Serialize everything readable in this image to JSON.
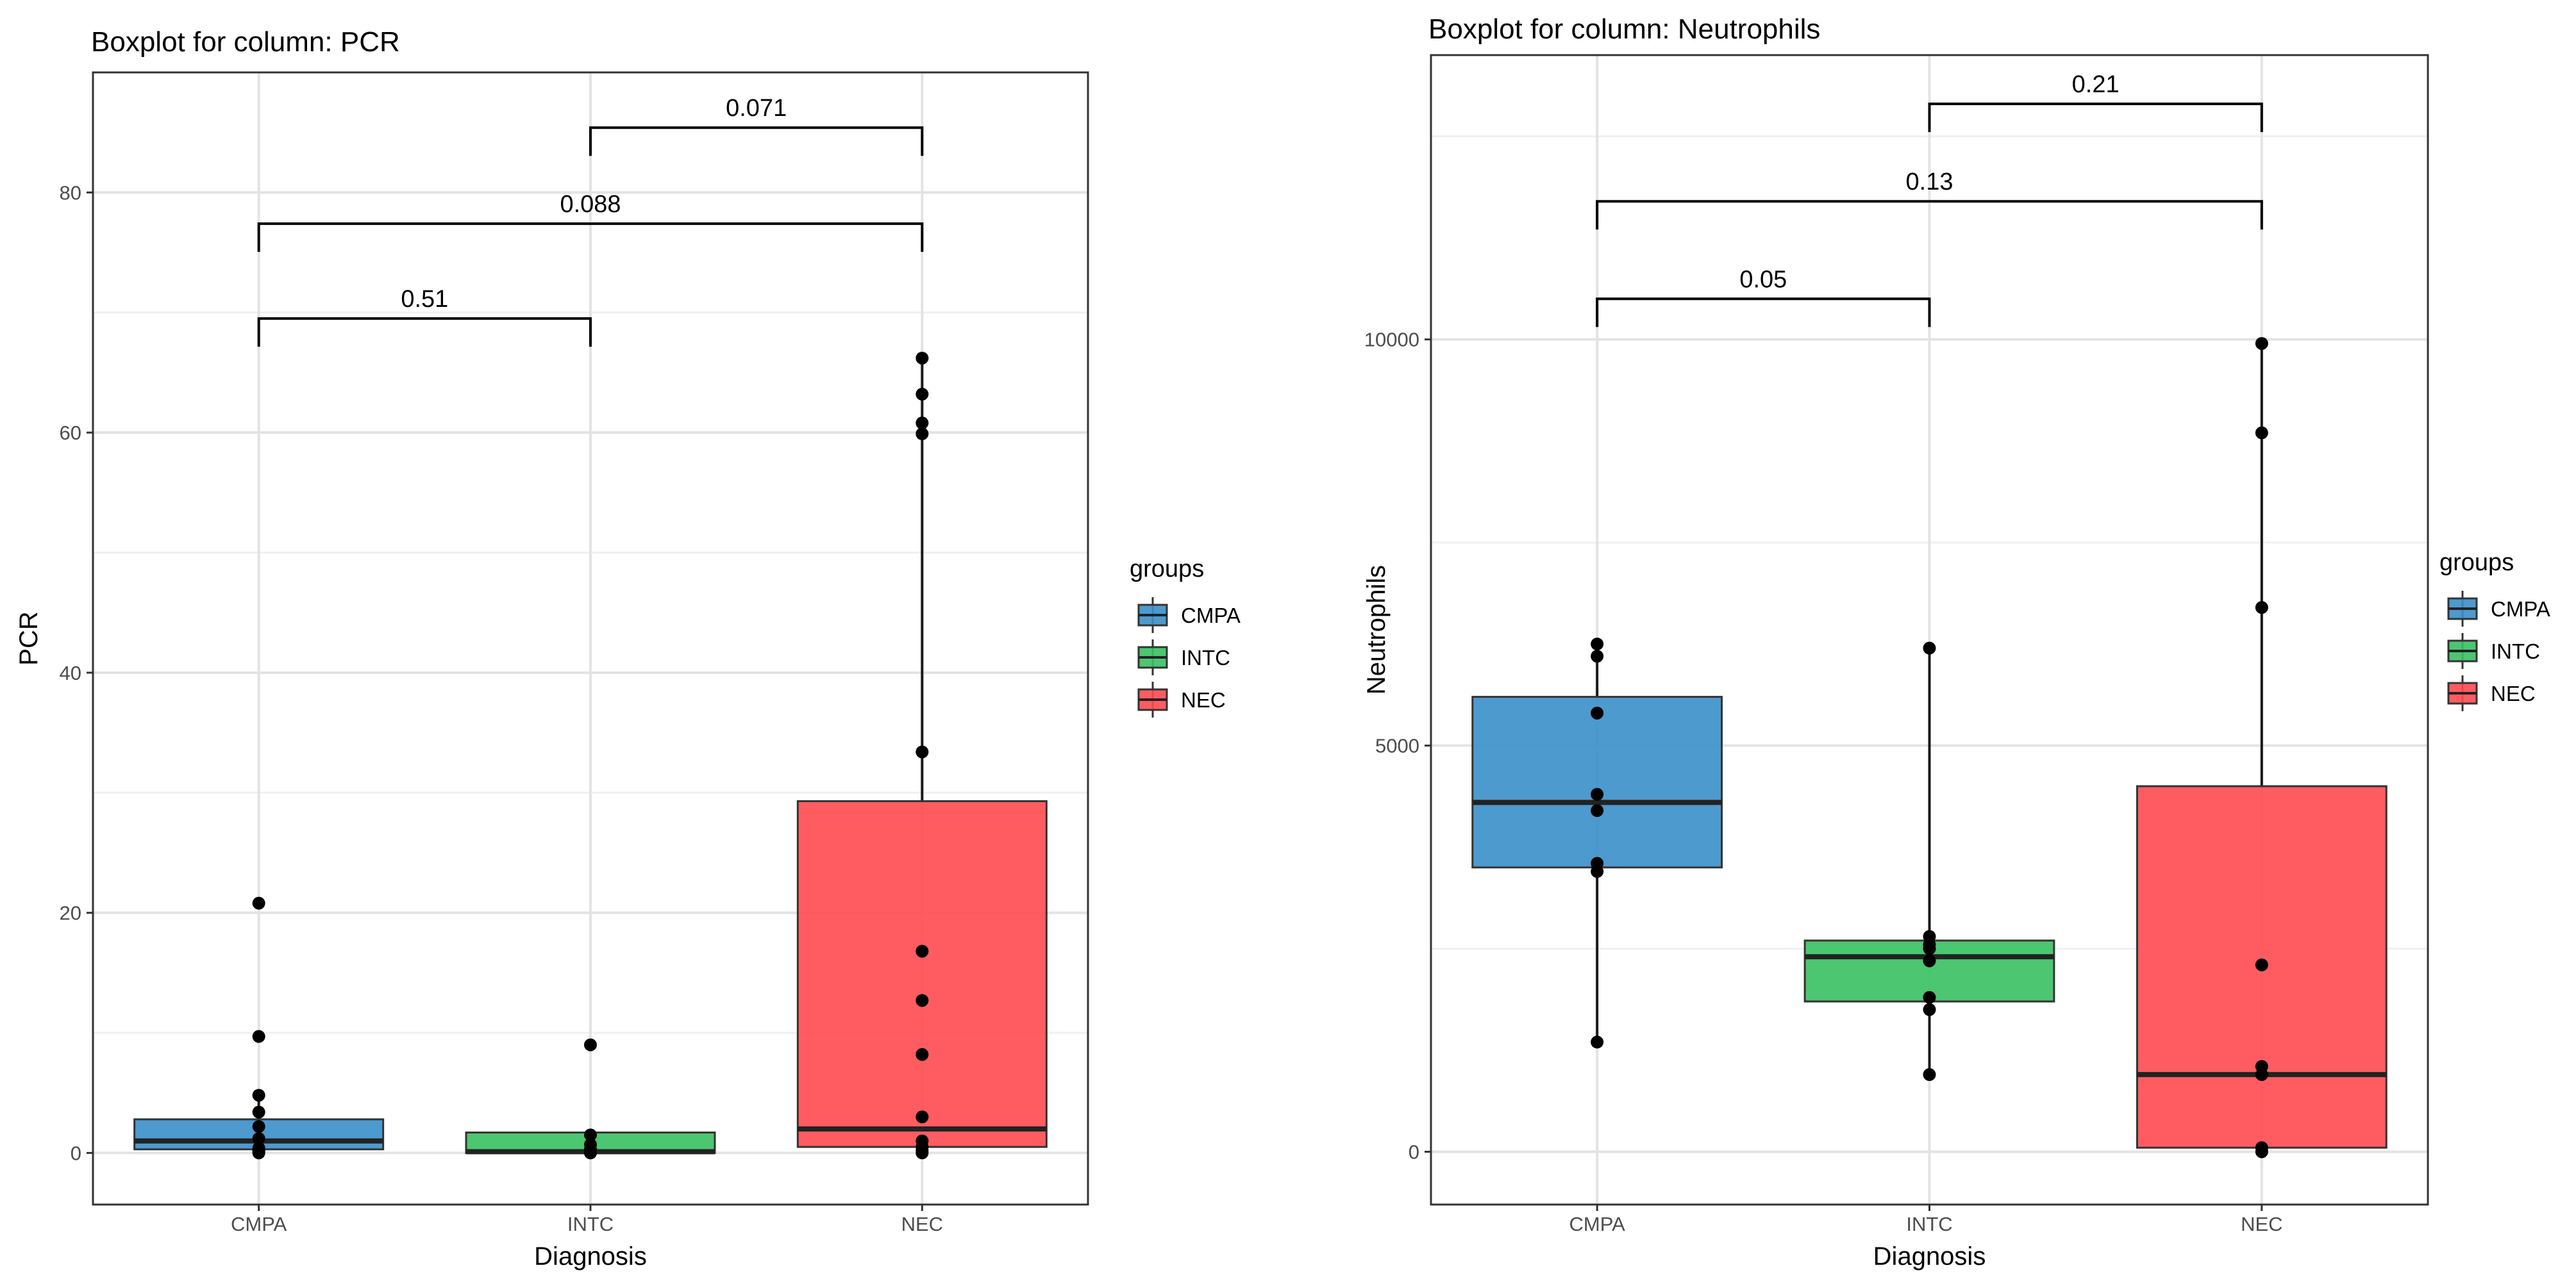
{
  "chart_data": [
    {
      "type": "boxplot",
      "title": "Boxplot for column: PCR",
      "xlabel": "Diagnosis",
      "ylabel": "PCR",
      "categories": [
        "CMPA",
        "INTC",
        "NEC"
      ],
      "ylim": [
        -4.3,
        90
      ],
      "yticks": [
        0,
        20,
        40,
        60,
        80
      ],
      "boxes": [
        {
          "group": "CMPA",
          "min": 0,
          "q1": 0.3,
          "median": 1.0,
          "q3": 2.8,
          "max": 5,
          "points": [
            0,
            0.1,
            0.2,
            0.4,
            1.2,
            2.2,
            3.4,
            4.8,
            9.7,
            20.8
          ]
        },
        {
          "group": "INTC",
          "min": 0,
          "q1": 0,
          "median": 0.1,
          "q3": 1.7,
          "max": 2,
          "points": [
            0,
            0.1,
            0.3,
            0.7,
            1.5,
            9.0
          ]
        },
        {
          "group": "NEC",
          "min": 0,
          "q1": 0.5,
          "median": 2.0,
          "q3": 29.3,
          "max": 66.2,
          "points": [
            0,
            0.2,
            0.5,
            1.0,
            3.0,
            8.2,
            12.7,
            16.8,
            33.4,
            59.9,
            60.8,
            63.2,
            66.2
          ]
        }
      ],
      "comparisons": [
        {
          "from": "CMPA",
          "to": "INTC",
          "label": "0.51",
          "y": 69.5
        },
        {
          "from": "CMPA",
          "to": "NEC",
          "label": "0.088",
          "y": 77.4
        },
        {
          "from": "INTC",
          "to": "NEC",
          "label": "0.071",
          "y": 85.4
        }
      ],
      "legend": {
        "title": "groups",
        "items": [
          "CMPA",
          "INTC",
          "NEC"
        ],
        "position": "right"
      }
    },
    {
      "type": "boxplot",
      "title": "Boxplot for column: Neutrophils",
      "xlabel": "Diagnosis",
      "ylabel": "Neutrophils",
      "categories": [
        "CMPA",
        "INTC",
        "NEC"
      ],
      "ylim": [
        -650,
        13500
      ],
      "yticks": [
        0,
        5000,
        10000
      ],
      "boxes": [
        {
          "group": "CMPA",
          "min": 1350,
          "q1": 3500,
          "median": 4300,
          "q3": 5600,
          "max": 6250,
          "points": [
            1350,
            3450,
            3550,
            4200,
            4400,
            5400,
            6100,
            6250
          ]
        },
        {
          "group": "INTC",
          "min": 950,
          "q1": 1850,
          "median": 2400,
          "q3": 2600,
          "max": 6200,
          "points": [
            950,
            1750,
            1900,
            2350,
            2500,
            2550,
            2650,
            6200
          ]
        },
        {
          "group": "NEC",
          "min": 0,
          "q1": 50,
          "median": 950,
          "q3": 4500,
          "max": 9950,
          "points": [
            0,
            50,
            950,
            1050,
            2300,
            6700,
            8850,
            9950
          ]
        }
      ],
      "comparisons": [
        {
          "from": "CMPA",
          "to": "INTC",
          "label": "0.05",
          "y": 10500
        },
        {
          "from": "CMPA",
          "to": "NEC",
          "label": "0.13",
          "y": 11700
        },
        {
          "from": "INTC",
          "to": "NEC",
          "label": "0.21",
          "y": 12900
        }
      ],
      "legend": {
        "title": "groups",
        "items": [
          "CMPA",
          "INTC",
          "NEC"
        ],
        "position": "right"
      }
    }
  ],
  "colors": {
    "CMPA": "#3a8fc9",
    "INTC": "#38c062",
    "NEC": "#ff4a50"
  }
}
